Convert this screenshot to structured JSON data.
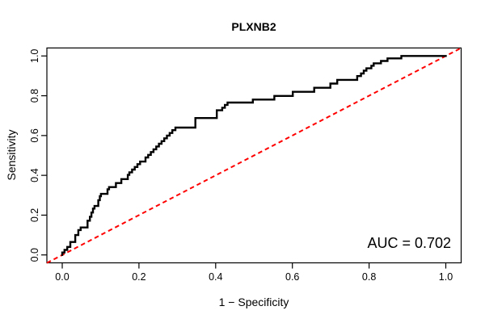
{
  "title": "PLXNB2",
  "x_axis": {
    "label": "1 − Specificity",
    "tick_labels": [
      "0.0",
      "0.2",
      "0.4",
      "0.6",
      "0.8",
      "1.0"
    ],
    "tick_values": [
      0,
      0.2,
      0.4,
      0.6,
      0.8,
      1.0
    ]
  },
  "y_axis": {
    "label": "Sensitivity",
    "tick_labels": [
      "0.0",
      "0.2",
      "0.4",
      "0.6",
      "0.8",
      "1.0"
    ],
    "tick_values": [
      0,
      0.2,
      0.4,
      0.6,
      0.8,
      1.0
    ]
  },
  "annotation": {
    "auc_label": "AUC = 0.702"
  },
  "colors": {
    "background": "#ffffff",
    "curve": "#000000",
    "reference_line": "#ff0000",
    "box": "#000000",
    "text": "#000000"
  },
  "chart_data": {
    "type": "line",
    "subtype": "roc_step_curve",
    "title": "PLXNB2",
    "xlabel": "1 − Specificity",
    "ylabel": "Sensitivity",
    "xlim": [
      0,
      1
    ],
    "ylim": [
      0,
      1
    ],
    "axis_padding": 0.04,
    "grid": false,
    "auc": 0.702,
    "reference_line": {
      "from": [
        0,
        0
      ],
      "to": [
        1,
        1
      ],
      "style": "dashed",
      "color": "#ff0000"
    },
    "series": [
      {
        "name": "ROC curve",
        "color": "#000000",
        "points": [
          [
            0.0,
            0.0
          ],
          [
            0.0,
            0.012
          ],
          [
            0.006,
            0.012
          ],
          [
            0.006,
            0.025
          ],
          [
            0.013,
            0.025
          ],
          [
            0.013,
            0.04
          ],
          [
            0.021,
            0.04
          ],
          [
            0.021,
            0.065
          ],
          [
            0.034,
            0.065
          ],
          [
            0.034,
            0.1
          ],
          [
            0.042,
            0.1
          ],
          [
            0.042,
            0.125
          ],
          [
            0.048,
            0.125
          ],
          [
            0.048,
            0.138
          ],
          [
            0.066,
            0.138
          ],
          [
            0.066,
            0.172
          ],
          [
            0.072,
            0.172
          ],
          [
            0.072,
            0.192
          ],
          [
            0.076,
            0.192
          ],
          [
            0.076,
            0.213
          ],
          [
            0.08,
            0.213
          ],
          [
            0.08,
            0.233
          ],
          [
            0.084,
            0.233
          ],
          [
            0.084,
            0.246
          ],
          [
            0.094,
            0.246
          ],
          [
            0.094,
            0.275
          ],
          [
            0.098,
            0.275
          ],
          [
            0.098,
            0.295
          ],
          [
            0.101,
            0.295
          ],
          [
            0.101,
            0.307
          ],
          [
            0.118,
            0.307
          ],
          [
            0.118,
            0.33
          ],
          [
            0.122,
            0.33
          ],
          [
            0.122,
            0.341
          ],
          [
            0.14,
            0.341
          ],
          [
            0.14,
            0.361
          ],
          [
            0.154,
            0.361
          ],
          [
            0.154,
            0.381
          ],
          [
            0.171,
            0.381
          ],
          [
            0.171,
            0.402
          ],
          [
            0.175,
            0.402
          ],
          [
            0.175,
            0.415
          ],
          [
            0.182,
            0.415
          ],
          [
            0.182,
            0.429
          ],
          [
            0.189,
            0.429
          ],
          [
            0.189,
            0.442
          ],
          [
            0.196,
            0.442
          ],
          [
            0.196,
            0.456
          ],
          [
            0.203,
            0.456
          ],
          [
            0.203,
            0.469
          ],
          [
            0.217,
            0.469
          ],
          [
            0.217,
            0.49
          ],
          [
            0.224,
            0.49
          ],
          [
            0.224,
            0.503
          ],
          [
            0.231,
            0.503
          ],
          [
            0.231,
            0.517
          ],
          [
            0.238,
            0.517
          ],
          [
            0.238,
            0.531
          ],
          [
            0.245,
            0.531
          ],
          [
            0.245,
            0.545
          ],
          [
            0.252,
            0.545
          ],
          [
            0.252,
            0.559
          ],
          [
            0.259,
            0.559
          ],
          [
            0.259,
            0.572
          ],
          [
            0.266,
            0.572
          ],
          [
            0.266,
            0.586
          ],
          [
            0.273,
            0.586
          ],
          [
            0.273,
            0.6
          ],
          [
            0.28,
            0.6
          ],
          [
            0.28,
            0.613
          ],
          [
            0.287,
            0.613
          ],
          [
            0.287,
            0.627
          ],
          [
            0.295,
            0.627
          ],
          [
            0.295,
            0.64
          ],
          [
            0.347,
            0.64
          ],
          [
            0.347,
            0.688
          ],
          [
            0.403,
            0.688
          ],
          [
            0.403,
            0.727
          ],
          [
            0.417,
            0.727
          ],
          [
            0.417,
            0.74
          ],
          [
            0.424,
            0.74
          ],
          [
            0.424,
            0.754
          ],
          [
            0.431,
            0.754
          ],
          [
            0.431,
            0.766
          ],
          [
            0.497,
            0.766
          ],
          [
            0.497,
            0.781
          ],
          [
            0.553,
            0.781
          ],
          [
            0.553,
            0.799
          ],
          [
            0.601,
            0.799
          ],
          [
            0.601,
            0.82
          ],
          [
            0.657,
            0.82
          ],
          [
            0.657,
            0.84
          ],
          [
            0.699,
            0.84
          ],
          [
            0.699,
            0.861
          ],
          [
            0.717,
            0.861
          ],
          [
            0.717,
            0.88
          ],
          [
            0.769,
            0.88
          ],
          [
            0.769,
            0.899
          ],
          [
            0.779,
            0.899
          ],
          [
            0.779,
            0.912
          ],
          [
            0.786,
            0.912
          ],
          [
            0.786,
            0.926
          ],
          [
            0.793,
            0.926
          ],
          [
            0.793,
            0.938
          ],
          [
            0.806,
            0.938
          ],
          [
            0.806,
            0.951
          ],
          [
            0.812,
            0.951
          ],
          [
            0.812,
            0.963
          ],
          [
            0.831,
            0.963
          ],
          [
            0.831,
            0.975
          ],
          [
            0.848,
            0.975
          ],
          [
            0.848,
            0.988
          ],
          [
            0.884,
            0.988
          ],
          [
            0.884,
            1.0
          ],
          [
            1.0,
            1.0
          ]
        ]
      }
    ],
    "annotations": [
      {
        "text": "AUC = 0.702",
        "position": "bottom-right"
      }
    ]
  }
}
